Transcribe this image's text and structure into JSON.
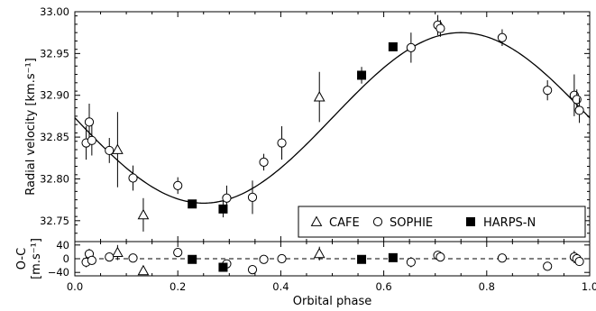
{
  "chart_data": [
    {
      "type": "scatter",
      "panel": "main",
      "xlim": [
        0.0,
        1.0
      ],
      "ylim": [
        32.725,
        33.0
      ],
      "ylabel": "Radial velocity [km.s⁻¹]",
      "yticks": [
        "32.75",
        "32.80",
        "32.85",
        "32.90",
        "32.95",
        "33.00"
      ],
      "legend": {
        "position": "lower-right",
        "entries": [
          "CAFE",
          "SOPHIE",
          "HARPS-N"
        ]
      },
      "model": {
        "style": "solid line",
        "mean": 32.873,
        "amplitude": 0.102,
        "peak_phase": 0.75
      },
      "series": [
        {
          "name": "CAFE",
          "marker": "open-triangle",
          "points": [
            {
              "x": 0.083,
              "y": 32.835,
              "err": 0.045
            },
            {
              "x": 0.133,
              "y": 32.757,
              "err": 0.02
            },
            {
              "x": 0.475,
              "y": 32.898,
              "err": 0.03
            }
          ]
        },
        {
          "name": "SOPHIE",
          "marker": "open-circle",
          "points": [
            {
              "x": 0.022,
              "y": 32.843,
              "err": 0.02
            },
            {
              "x": 0.028,
              "y": 32.868,
              "err": 0.022
            },
            {
              "x": 0.033,
              "y": 32.846,
              "err": 0.018
            },
            {
              "x": 0.067,
              "y": 32.834,
              "err": 0.015
            },
            {
              "x": 0.113,
              "y": 32.801,
              "err": 0.015
            },
            {
              "x": 0.2,
              "y": 32.792,
              "err": 0.01
            },
            {
              "x": 0.295,
              "y": 32.777,
              "err": 0.015
            },
            {
              "x": 0.345,
              "y": 32.778,
              "err": 0.02
            },
            {
              "x": 0.367,
              "y": 32.82,
              "err": 0.01
            },
            {
              "x": 0.402,
              "y": 32.843,
              "err": 0.02
            },
            {
              "x": 0.653,
              "y": 32.957,
              "err": 0.018
            },
            {
              "x": 0.705,
              "y": 32.984,
              "err": 0.012
            },
            {
              "x": 0.71,
              "y": 32.98,
              "err": 0.01
            },
            {
              "x": 0.83,
              "y": 32.969,
              "err": 0.01
            },
            {
              "x": 0.918,
              "y": 32.906,
              "err": 0.012
            },
            {
              "x": 0.97,
              "y": 32.9,
              "err": 0.025
            },
            {
              "x": 0.975,
              "y": 32.895,
              "err": 0.012
            },
            {
              "x": 0.98,
              "y": 32.882,
              "err": 0.015
            }
          ]
        },
        {
          "name": "HARPS-N",
          "marker": "filled-square",
          "points": [
            {
              "x": 0.228,
              "y": 32.77,
              "err": 0.0
            },
            {
              "x": 0.288,
              "y": 32.764,
              "err": 0.01
            },
            {
              "x": 0.557,
              "y": 32.924,
              "err": 0.01
            },
            {
              "x": 0.618,
              "y": 32.958,
              "err": 0.0
            }
          ]
        }
      ]
    },
    {
      "type": "scatter",
      "panel": "residuals",
      "xlim": [
        0.0,
        1.0
      ],
      "ylim": [
        -50,
        50
      ],
      "xlabel": "Orbital phase",
      "ylabel_line1": "O-C",
      "ylabel_line2": "[m.s⁻¹]",
      "xticks": [
        "0.0",
        "0.2",
        "0.4",
        "0.6",
        "0.8",
        "1.0"
      ],
      "yticks": [
        "−40",
        "0",
        "40"
      ],
      "reference_line": {
        "y": 0,
        "style": "dashed"
      },
      "series": [
        {
          "name": "CAFE",
          "marker": "open-triangle",
          "points": [
            {
              "x": 0.083,
              "y": 18,
              "err": 22
            },
            {
              "x": 0.133,
              "y": -35,
              "err": 12
            },
            {
              "x": 0.475,
              "y": 15,
              "err": 20
            }
          ]
        },
        {
          "name": "SOPHIE",
          "marker": "open-circle",
          "points": [
            {
              "x": 0.022,
              "y": -10,
              "err": 15
            },
            {
              "x": 0.028,
              "y": 14,
              "err": 15
            },
            {
              "x": 0.033,
              "y": -5,
              "err": 12
            },
            {
              "x": 0.067,
              "y": 5,
              "err": 12
            },
            {
              "x": 0.113,
              "y": 2,
              "err": 10
            },
            {
              "x": 0.2,
              "y": 18,
              "err": 10
            },
            {
              "x": 0.295,
              "y": -15,
              "err": 12
            },
            {
              "x": 0.345,
              "y": -32,
              "err": 12
            },
            {
              "x": 0.367,
              "y": -2,
              "err": 8
            },
            {
              "x": 0.402,
              "y": 0,
              "err": 12
            },
            {
              "x": 0.653,
              "y": -10,
              "err": 15
            },
            {
              "x": 0.705,
              "y": 10,
              "err": 10
            },
            {
              "x": 0.71,
              "y": 5,
              "err": 8
            },
            {
              "x": 0.83,
              "y": 2,
              "err": 8
            },
            {
              "x": 0.918,
              "y": -22,
              "err": 10
            },
            {
              "x": 0.97,
              "y": 5,
              "err": 18
            },
            {
              "x": 0.975,
              "y": 0,
              "err": 8
            },
            {
              "x": 0.98,
              "y": -8,
              "err": 12
            }
          ]
        },
        {
          "name": "HARPS-N",
          "marker": "filled-square",
          "points": [
            {
              "x": 0.228,
              "y": -2,
              "err": 0
            },
            {
              "x": 0.288,
              "y": -25,
              "err": 8
            },
            {
              "x": 0.557,
              "y": -2,
              "err": 0
            },
            {
              "x": 0.618,
              "y": 3,
              "err": 0
            }
          ]
        }
      ]
    }
  ]
}
